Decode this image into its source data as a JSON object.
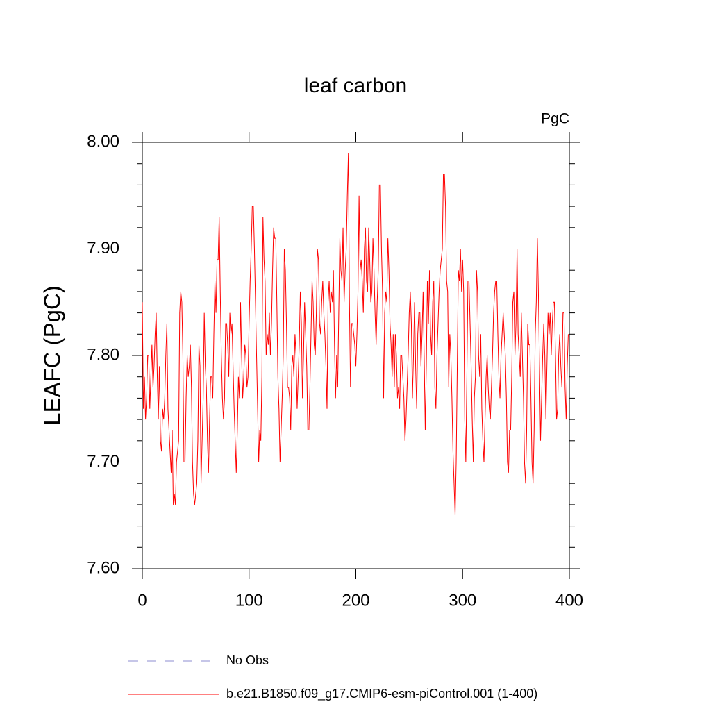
{
  "chart_data": {
    "type": "line",
    "title": "leaf carbon",
    "units_label": "PgC",
    "ylabel": "LEAFC  (PgC)",
    "xlim": [
      0,
      400
    ],
    "xticks": [
      0,
      100,
      200,
      300,
      400
    ],
    "ylim": [
      7.6,
      8.0
    ],
    "yticks": [
      {
        "value": 7.6,
        "label": "7.60"
      },
      {
        "value": 7.7,
        "label": "7.70"
      },
      {
        "value": 7.8,
        "label": "7.80"
      },
      {
        "value": 7.9,
        "label": "7.90"
      },
      {
        "value": 8.0,
        "label": "8.00"
      }
    ],
    "yminorticks": [
      7.62,
      7.64,
      7.66,
      7.68,
      7.72,
      7.74,
      7.76,
      7.78,
      7.82,
      7.84,
      7.86,
      7.88,
      7.92,
      7.94,
      7.96,
      7.98
    ],
    "x": [
      0,
      1,
      2,
      3,
      4,
      5,
      6,
      7,
      8,
      9,
      10,
      11,
      12,
      13,
      14,
      15,
      16,
      17,
      18,
      19,
      20,
      21,
      22,
      23,
      24,
      25,
      26,
      27,
      28,
      29,
      30,
      31,
      32,
      33,
      34,
      35,
      36,
      37,
      38,
      39,
      40,
      41,
      42,
      43,
      44,
      45,
      46,
      47,
      48,
      49,
      50,
      51,
      52,
      53,
      54,
      55,
      56,
      57,
      58,
      59,
      60,
      61,
      62,
      63,
      64,
      65,
      66,
      67,
      68,
      69,
      70,
      71,
      72,
      73,
      74,
      75,
      76,
      77,
      78,
      79,
      80,
      81,
      82,
      83,
      84,
      85,
      86,
      87,
      88,
      89,
      90,
      91,
      92,
      93,
      94,
      95,
      96,
      97,
      98,
      99,
      100,
      101,
      102,
      103,
      104,
      105,
      106,
      107,
      108,
      109,
      110,
      111,
      112,
      113,
      114,
      115,
      116,
      117,
      118,
      119,
      120,
      121,
      122,
      123,
      124,
      125,
      126,
      127,
      128,
      129,
      130,
      131,
      132,
      133,
      134,
      135,
      136,
      137,
      138,
      139,
      140,
      141,
      142,
      143,
      144,
      145,
      146,
      147,
      148,
      149,
      150,
      151,
      152,
      153,
      154,
      155,
      156,
      157,
      158,
      159,
      160,
      161,
      162,
      163,
      164,
      165,
      166,
      167,
      168,
      169,
      170,
      171,
      172,
      173,
      174,
      175,
      176,
      177,
      178,
      179,
      180,
      181,
      182,
      183,
      184,
      185,
      186,
      187,
      188,
      189,
      190,
      191,
      192,
      193,
      194,
      195,
      196,
      197,
      198,
      199,
      200,
      201,
      202,
      203,
      204,
      205,
      206,
      207,
      208,
      209,
      210,
      211,
      212,
      213,
      214,
      215,
      216,
      217,
      218,
      219,
      220,
      221,
      222,
      223,
      224,
      225,
      226,
      227,
      228,
      229,
      230,
      231,
      232,
      233,
      234,
      235,
      236,
      237,
      238,
      239,
      240,
      241,
      242,
      243,
      244,
      245,
      246,
      247,
      248,
      249,
      250,
      251,
      252,
      253,
      254,
      255,
      256,
      257,
      258,
      259,
      260,
      261,
      262,
      263,
      264,
      265,
      266,
      267,
      268,
      269,
      270,
      271,
      272,
      273,
      274,
      275,
      276,
      277,
      278,
      279,
      280,
      281,
      282,
      283,
      284,
      285,
      286,
      287,
      288,
      289,
      290,
      291,
      292,
      293,
      294,
      295,
      296,
      297,
      298,
      299,
      300,
      301,
      302,
      303,
      304,
      305,
      306,
      307,
      308,
      309,
      310,
      311,
      312,
      313,
      314,
      315,
      316,
      317,
      318,
      319,
      320,
      321,
      322,
      323,
      324,
      325,
      326,
      327,
      328,
      329,
      330,
      331,
      332,
      333,
      334,
      335,
      336,
      337,
      338,
      339,
      340,
      341,
      342,
      343,
      344,
      345,
      346,
      347,
      348,
      349,
      350,
      351,
      352,
      353,
      354,
      355,
      356,
      357,
      358,
      359,
      360,
      361,
      362,
      363,
      364,
      365,
      366,
      367,
      368,
      369,
      370,
      371,
      372,
      373,
      374,
      375,
      376,
      377,
      378,
      379,
      380,
      381,
      382,
      383,
      384,
      385,
      386,
      387,
      388,
      389,
      390,
      391,
      392,
      393,
      394,
      395,
      396,
      397,
      398,
      399
    ],
    "series": [
      {
        "name": "No Obs",
        "color": "#8c8cd0",
        "dashed": true
      },
      {
        "name": "b.e21.B1850.f09_g17.CMIP6-esm-piControl.001 (1-400)",
        "color": "#ff0000",
        "values": [
          7.85,
          7.75,
          7.78,
          7.74,
          7.76,
          7.8,
          7.8,
          7.75,
          7.78,
          7.81,
          7.77,
          7.79,
          7.82,
          7.84,
          7.78,
          7.74,
          7.79,
          7.72,
          7.71,
          7.75,
          7.74,
          7.76,
          7.8,
          7.83,
          7.75,
          7.73,
          7.71,
          7.69,
          7.73,
          7.66,
          7.67,
          7.66,
          7.7,
          7.71,
          7.72,
          7.84,
          7.86,
          7.85,
          7.8,
          7.7,
          7.7,
          7.76,
          7.8,
          7.78,
          7.79,
          7.81,
          7.77,
          7.7,
          7.67,
          7.66,
          7.67,
          7.68,
          7.72,
          7.81,
          7.79,
          7.68,
          7.72,
          7.76,
          7.84,
          7.79,
          7.77,
          7.72,
          7.69,
          7.74,
          7.78,
          7.78,
          7.76,
          7.82,
          7.87,
          7.84,
          7.89,
          7.89,
          7.93,
          7.86,
          7.8,
          7.76,
          7.74,
          7.76,
          7.83,
          7.83,
          7.81,
          7.78,
          7.84,
          7.82,
          7.83,
          7.79,
          7.75,
          7.72,
          7.69,
          7.73,
          7.78,
          7.76,
          7.85,
          7.8,
          7.76,
          7.78,
          7.81,
          7.8,
          7.77,
          7.78,
          7.83,
          7.87,
          7.9,
          7.94,
          7.94,
          7.9,
          7.85,
          7.8,
          7.75,
          7.7,
          7.73,
          7.72,
          7.78,
          7.93,
          7.89,
          7.87,
          7.8,
          7.82,
          7.81,
          7.84,
          7.8,
          7.83,
          7.88,
          7.92,
          7.91,
          7.91,
          7.85,
          7.78,
          7.75,
          7.7,
          7.73,
          7.76,
          7.8,
          7.9,
          7.88,
          7.83,
          7.77,
          7.77,
          7.76,
          7.73,
          7.79,
          7.8,
          7.78,
          7.82,
          7.8,
          7.75,
          7.78,
          7.81,
          7.86,
          7.83,
          7.76,
          7.8,
          7.85,
          7.82,
          7.79,
          7.73,
          7.73,
          7.77,
          7.82,
          7.87,
          7.85,
          7.81,
          7.8,
          7.84,
          7.9,
          7.89,
          7.83,
          7.82,
          7.85,
          7.87,
          7.84,
          7.82,
          7.79,
          7.75,
          7.85,
          7.87,
          7.84,
          7.86,
          7.85,
          7.88,
          7.81,
          7.76,
          7.8,
          7.77,
          7.84,
          7.91,
          7.88,
          7.87,
          7.92,
          7.85,
          7.88,
          7.9,
          7.95,
          7.99,
          7.85,
          7.77,
          7.83,
          7.83,
          7.82,
          7.81,
          7.79,
          7.82,
          7.86,
          7.95,
          7.88,
          7.89,
          7.87,
          7.84,
          7.9,
          7.92,
          7.87,
          7.86,
          7.92,
          7.89,
          7.85,
          7.86,
          7.91,
          7.88,
          7.84,
          7.81,
          7.85,
          7.88,
          7.96,
          7.96,
          7.9,
          7.86,
          7.76,
          7.84,
          7.86,
          7.85,
          7.91,
          7.88,
          7.83,
          7.81,
          7.78,
          7.82,
          7.77,
          7.82,
          7.8,
          7.76,
          7.77,
          7.75,
          7.8,
          7.8,
          7.78,
          7.76,
          7.72,
          7.74,
          7.77,
          7.8,
          7.84,
          7.86,
          7.83,
          7.76,
          7.8,
          7.85,
          7.79,
          7.75,
          7.82,
          7.84,
          7.84,
          7.79,
          7.82,
          7.86,
          7.8,
          7.73,
          7.79,
          7.87,
          7.83,
          7.88,
          7.82,
          7.8,
          7.85,
          7.87,
          7.77,
          7.75,
          7.8,
          7.83,
          7.86,
          7.88,
          7.89,
          7.9,
          7.97,
          7.97,
          7.94,
          7.87,
          7.86,
          7.77,
          7.82,
          7.8,
          7.76,
          7.71,
          7.68,
          7.65,
          7.7,
          7.79,
          7.88,
          7.87,
          7.9,
          7.86,
          7.89,
          7.86,
          7.74,
          7.7,
          7.78,
          7.87,
          7.87,
          7.83,
          7.79,
          7.74,
          7.7,
          7.76,
          7.78,
          7.88,
          7.86,
          7.8,
          7.78,
          7.82,
          7.75,
          7.72,
          7.7,
          7.74,
          7.78,
          7.8,
          7.77,
          7.75,
          7.74,
          7.77,
          7.8,
          7.84,
          7.86,
          7.87,
          7.87,
          7.82,
          7.78,
          7.76,
          7.8,
          7.82,
          7.84,
          7.82,
          7.8,
          7.76,
          7.7,
          7.69,
          7.73,
          7.73,
          7.78,
          7.85,
          7.86,
          7.8,
          7.83,
          7.9,
          7.82,
          7.8,
          7.78,
          7.84,
          7.8,
          7.76,
          7.7,
          7.68,
          7.73,
          7.83,
          7.81,
          7.81,
          7.76,
          7.7,
          7.68,
          7.73,
          7.82,
          7.85,
          7.91,
          7.86,
          7.79,
          7.72,
          7.76,
          7.8,
          7.83,
          7.8,
          7.74,
          7.79,
          7.84,
          7.82,
          7.84,
          7.8,
          7.83,
          7.85,
          7.85,
          7.8,
          7.74,
          7.75,
          7.8,
          7.82,
          7.79,
          7.77,
          7.84,
          7.84,
          7.77,
          7.74,
          7.79,
          7.82
        ]
      }
    ]
  }
}
